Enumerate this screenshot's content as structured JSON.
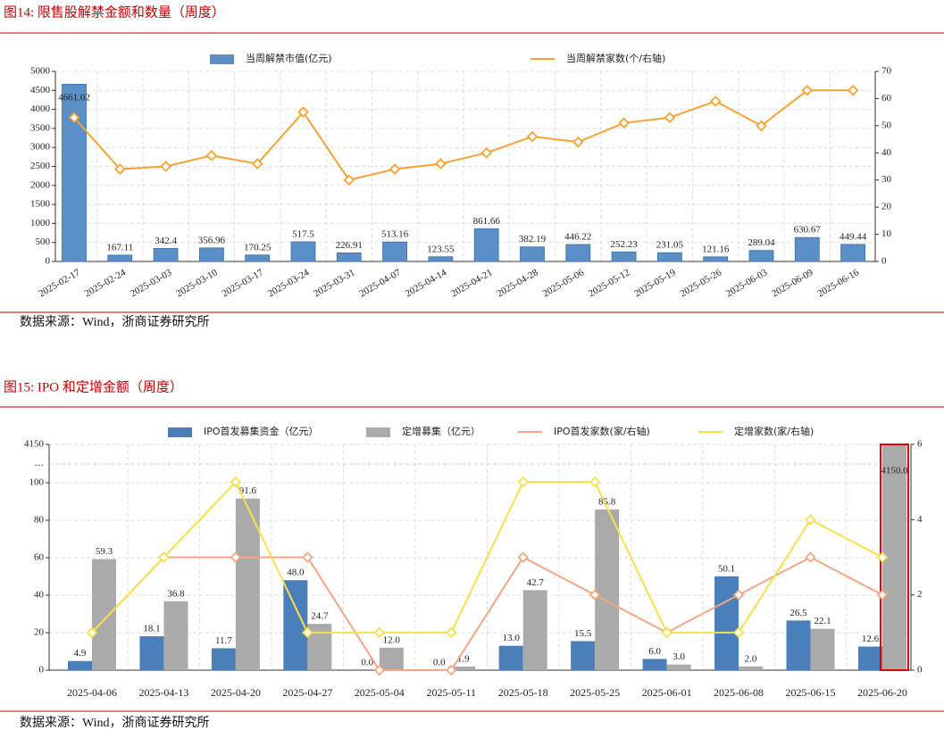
{
  "chart_data": [
    {
      "type": "bar",
      "title": "图14:  限售股解禁金额和数量（周度）",
      "source": "数据来源：Wind，浙商证券研究所",
      "categories": [
        "2025-02-17",
        "2025-02-24",
        "2025-03-03",
        "2025-03-10",
        "2025-03-17",
        "2025-03-24",
        "2025-03-31",
        "2025-04-07",
        "2025-04-14",
        "2025-04-21",
        "2025-04-28",
        "2025-05-06",
        "2025-05-12",
        "2025-05-19",
        "2025-05-26",
        "2025-06-03",
        "2025-06-09",
        "2025-06-16"
      ],
      "series": [
        {
          "name": "当周解禁市值(亿元)",
          "type": "bar",
          "color": "#5b8fc7",
          "values": [
            4661.02,
            167.11,
            342.4,
            356.96,
            170.25,
            517.5,
            226.91,
            513.16,
            123.55,
            861.66,
            382.19,
            446.22,
            252.23,
            231.05,
            121.16,
            289.04,
            630.67,
            449.44
          ]
        },
        {
          "name": "当周解禁家数(个/右轴)",
          "type": "line",
          "axis": "y2",
          "color": "#f7a232",
          "values": [
            53,
            34,
            35,
            39,
            36,
            55,
            30,
            34,
            36,
            40,
            46,
            44,
            51,
            53,
            59,
            50,
            63,
            63
          ]
        }
      ],
      "ylim": [
        0,
        5000
      ],
      "yticks": [
        0,
        500,
        1000,
        1500,
        2000,
        2500,
        3000,
        3500,
        4000,
        4500,
        5000
      ],
      "y2lim": [
        0,
        70
      ],
      "y2ticks": [
        0,
        10,
        20,
        30,
        40,
        50,
        60,
        70
      ],
      "grid": true
    },
    {
      "type": "bar",
      "title": "图15:  IPO 和定增金额（周度）",
      "source": "数据来源：Wind，浙商证券研究所",
      "categories": [
        "2025-04-06",
        "2025-04-13",
        "2025-04-20",
        "2025-04-27",
        "2025-05-04",
        "2025-05-11",
        "2025-05-18",
        "2025-05-25",
        "2025-06-01",
        "2025-06-08",
        "2025-06-15",
        "2025-06-20"
      ],
      "series": [
        {
          "name": "IPO首发募集资金（亿元）",
          "type": "bar",
          "color": "#4a7fb9",
          "values": [
            4.9,
            18.1,
            11.7,
            48.0,
            0.0,
            0.0,
            13.0,
            15.5,
            6.0,
            50.1,
            26.5,
            12.6
          ],
          "value_labels": [
            "4.9",
            "18.1",
            "11.7",
            "48.0",
            "0.0",
            "0.0",
            "13.0",
            "15.5",
            "6.0",
            "50.1",
            "26.5",
            "12.6"
          ]
        },
        {
          "name": "定增募集（亿元）",
          "type": "bar",
          "color": "#aaaaaa",
          "values": [
            59.3,
            36.8,
            91.6,
            24.7,
            12.0,
            1.9,
            42.7,
            85.8,
            3.0,
            2.0,
            22.1,
            4150.0
          ],
          "value_labels": [
            "59.3",
            "36.8",
            "91.6",
            "24.7",
            "12.0",
            "1.9",
            "42.7",
            "85.8",
            "3.0",
            "2.0",
            "22.1",
            "4150.0"
          ]
        },
        {
          "name": "IPO首发家数(家/右轴)",
          "type": "line",
          "axis": "y2",
          "color": "#f4a582",
          "values": [
            1,
            3,
            3,
            3,
            0,
            0,
            3,
            2,
            1,
            2,
            3,
            2
          ]
        },
        {
          "name": "定增家数(家/右轴)",
          "type": "line",
          "axis": "y2",
          "color": "#f8e04b",
          "values": [
            1,
            3,
            5,
            1,
            1,
            1,
            5,
            5,
            1,
            1,
            4,
            3
          ]
        }
      ],
      "ylim": [
        0,
        4150
      ],
      "yticks": [
        0,
        20,
        40,
        60,
        80,
        100,
        4150
      ],
      "y_break": {
        "from": 100,
        "to": 4150,
        "label": "..."
      },
      "y2lim": [
        0,
        6
      ],
      "y2ticks": [
        0,
        2,
        4,
        6
      ],
      "grid": true
    }
  ]
}
